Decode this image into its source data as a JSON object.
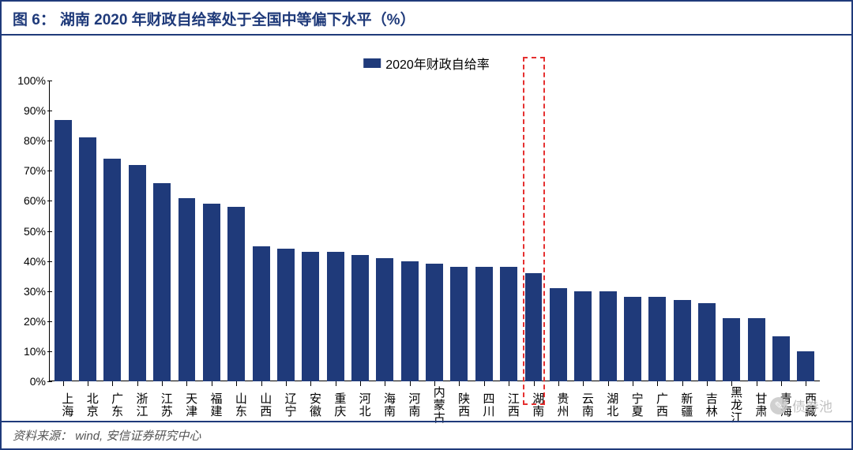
{
  "title": {
    "prefix": "图 6：",
    "text": "湖南 2020 年财政自给率处于全国中等偏下水平（%）"
  },
  "legend": {
    "label": "2020年财政自给率",
    "swatch_color": "#1f3a7a"
  },
  "chart": {
    "type": "bar",
    "ylim": [
      0,
      100
    ],
    "ytick_step": 10,
    "y_suffix": "%",
    "bar_color": "#1f3a7a",
    "background_color": "#ffffff",
    "axis_color": "#000000",
    "label_fontsize": 15,
    "tick_fontsize": 14,
    "bar_width": 0.7,
    "categories": [
      "上海",
      "北京",
      "广东",
      "浙江",
      "江苏",
      "天津",
      "福建",
      "山东",
      "山西",
      "辽宁",
      "安徽",
      "重庆",
      "河北",
      "海南",
      "河南",
      "内蒙古",
      "陕西",
      "四川",
      "江西",
      "湖南",
      "贵州",
      "云南",
      "湖北",
      "宁夏",
      "广西",
      "新疆",
      "吉林",
      "黑龙江",
      "甘肃",
      "青海",
      "西藏"
    ],
    "values": [
      87,
      81,
      74,
      72,
      66,
      61,
      59,
      58,
      45,
      44,
      43,
      43,
      42,
      41,
      40,
      39,
      38,
      38,
      38,
      36,
      31,
      30,
      30,
      28,
      28,
      27,
      26,
      21,
      21,
      15,
      10
    ],
    "highlight": {
      "index": 19,
      "border_color": "#e53030",
      "dash": "4,3"
    }
  },
  "source": {
    "label": "资料来源：",
    "text": "wind, 安信证券研究中心"
  },
  "watermark": {
    "text": "债券池",
    "icon_glyph": "✎"
  }
}
